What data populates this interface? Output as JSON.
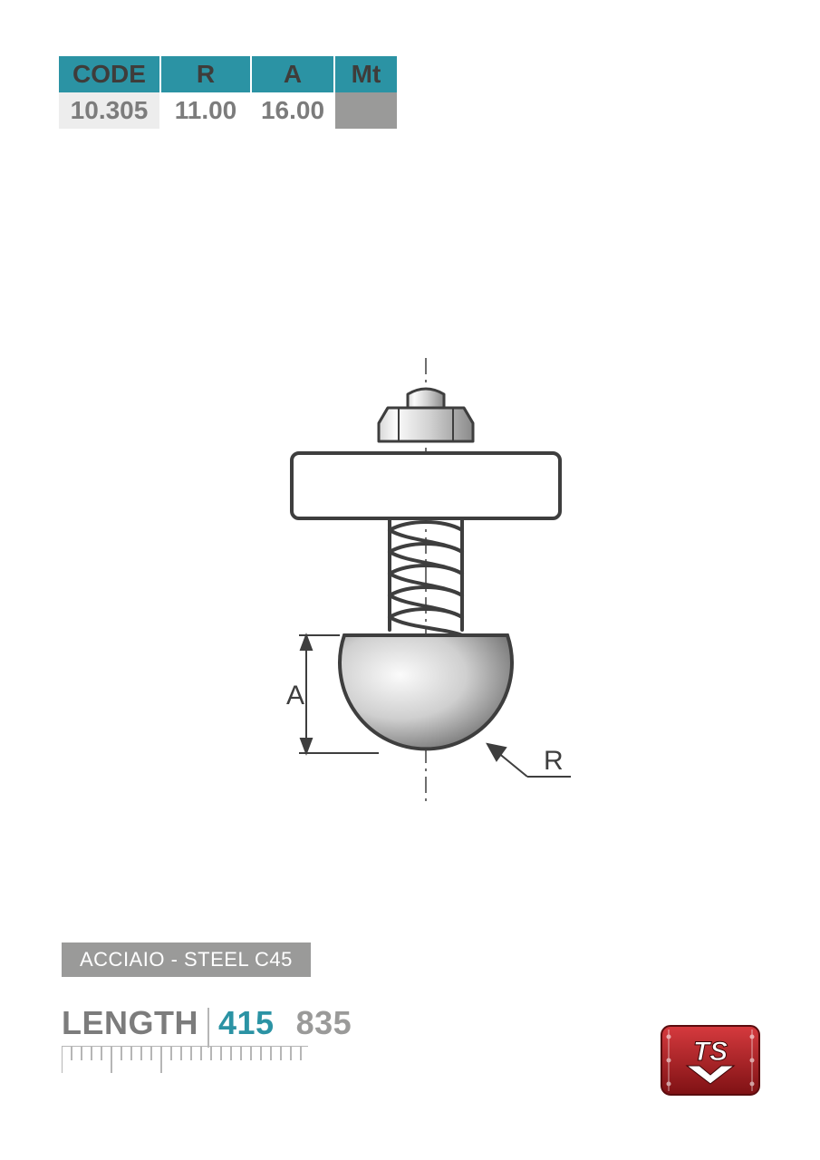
{
  "colors": {
    "header_bg": "#2b93a4",
    "header_text": "#3f3c3a",
    "row_alt_bg": "#ededed",
    "row_text": "#7c7c7c",
    "mt_cell_bg": "#9a9a99",
    "material_bg": "#9a9a99",
    "length_label": "#7c7c7c",
    "length_v1": "#2b93a4",
    "length_v2": "#9a9a99",
    "ruler": "#b6b6b6",
    "diagram_stroke": "#3e3e3e",
    "diagram_fill_light": "#fbfbfb",
    "diagram_fill_mid": "#cfcfcf",
    "diagram_fill_dark": "#7a7a7a",
    "logo_red": "#b4191e",
    "logo_dark": "#6d0f12"
  },
  "spec_table": {
    "headers": [
      "CODE",
      "R",
      "A",
      "Mt"
    ],
    "row": {
      "code": "10.305",
      "r": "11.00",
      "a": "16.00",
      "mt": ""
    }
  },
  "diagram": {
    "dim_labels": {
      "A": "A",
      "R": "R"
    }
  },
  "material": {
    "label": "ACCIAIO - STEEL C45"
  },
  "length": {
    "label": "LENGTH",
    "values": [
      "415",
      "835"
    ]
  }
}
